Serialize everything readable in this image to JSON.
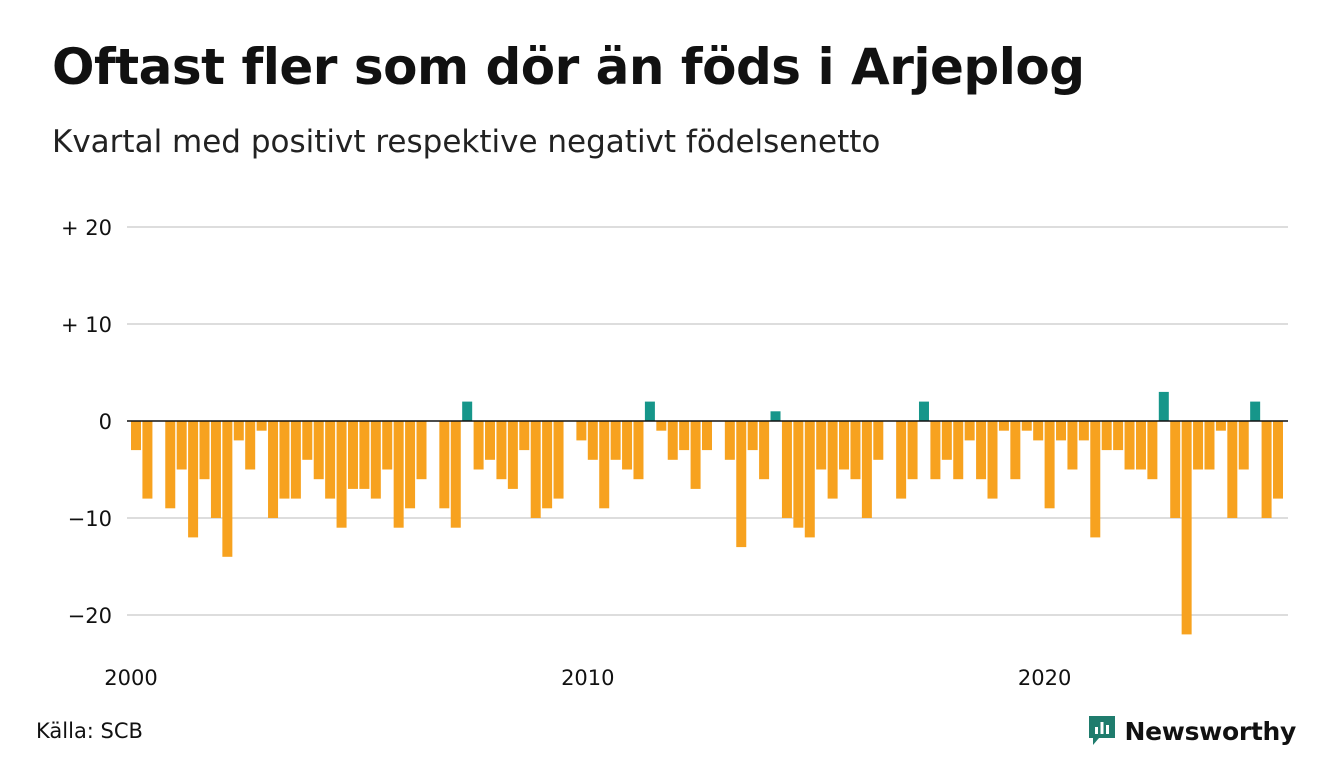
{
  "title": "Oftast fler som dör än föds i Arjeplog",
  "subtitle": "Kvartal med positivt respektive negativt födelsenetto",
  "source": "Källa: SCB",
  "brand": "Newsworthy",
  "colors": {
    "negative": "#f7a21f",
    "positive": "#16968a",
    "grid": "#dddddd",
    "brand": "#1f7c6d"
  },
  "chart_data": {
    "type": "bar",
    "x_unit": "quarter",
    "x_start": "2000 Q1",
    "ylim": [
      -24,
      22
    ],
    "y_ticks": [
      {
        "value": 20,
        "label": "+ 20"
      },
      {
        "value": 10,
        "label": "+ 10"
      },
      {
        "value": 0,
        "label": "0"
      },
      {
        "value": -10,
        "label": "−10"
      },
      {
        "value": -20,
        "label": "−20"
      }
    ],
    "x_ticks": [
      {
        "value": 2000,
        "label": "2000"
      },
      {
        "value": 2010,
        "label": "2010"
      },
      {
        "value": 2020,
        "label": "2020"
      }
    ],
    "grid": true,
    "values": [
      -3,
      -8,
      0,
      -9,
      -5,
      -12,
      -6,
      -10,
      -14,
      -2,
      -5,
      -1,
      -10,
      -8,
      -8,
      -4,
      -6,
      -8,
      -11,
      -7,
      -7,
      -8,
      -5,
      -11,
      -9,
      -6,
      0,
      -9,
      -11,
      2,
      -5,
      -4,
      -6,
      -7,
      -3,
      -10,
      -9,
      -8,
      0,
      -2,
      -4,
      -9,
      -4,
      -5,
      -6,
      2,
      -1,
      -4,
      -3,
      -7,
      -3,
      0,
      -4,
      -13,
      -3,
      -6,
      1,
      -10,
      -11,
      -12,
      -5,
      -8,
      -5,
      -6,
      -10,
      -4,
      0,
      -8,
      -6,
      2,
      -6,
      -4,
      -6,
      -2,
      -6,
      -8,
      -1,
      -6,
      -1,
      -2,
      -9,
      -2,
      -5,
      -2,
      -12,
      -3,
      -3,
      -5,
      -5,
      -6,
      3,
      -10,
      -22,
      -5,
      -5,
      -1,
      -10,
      -5,
      2,
      -10,
      -8
    ]
  }
}
